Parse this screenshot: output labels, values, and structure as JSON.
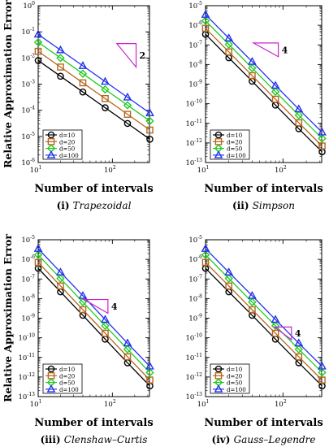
{
  "chart_data": [
    {
      "type": "line",
      "log_x": true,
      "log_y": true,
      "xlim": [
        1,
        2.5
      ],
      "ylim": [
        -6,
        0
      ],
      "xlabel": "Number of intervals",
      "ylabel": "Relative Approximation Error",
      "x_ticks": [
        {
          "exp": 1,
          "label": "10",
          "sup": "1"
        },
        {
          "exp": 2,
          "label": "10",
          "sup": "2"
        }
      ],
      "y_ticks": [
        {
          "exp": 0,
          "label": "10",
          "sup": "0"
        },
        {
          "exp": -1,
          "label": "10",
          "sup": "-1"
        },
        {
          "exp": -2,
          "label": "10",
          "sup": "-2"
        },
        {
          "exp": -3,
          "label": "10",
          "sup": "-3"
        },
        {
          "exp": -4,
          "label": "10",
          "sup": "-4"
        },
        {
          "exp": -5,
          "label": "10",
          "sup": "-5"
        },
        {
          "exp": -6,
          "label": "10",
          "sup": "-6"
        }
      ],
      "x": [
        10,
        20,
        40,
        80,
        160,
        320
      ],
      "series": [
        {
          "name": "d=10",
          "color": "#000000",
          "marker": "circle",
          "values": [
            0.008,
            0.002,
            0.0005,
            0.000125,
            3.13e-05,
            7.8e-06
          ]
        },
        {
          "name": "d=20",
          "color": "#b5651d",
          "marker": "square",
          "values": [
            0.018,
            0.0045,
            0.00112,
            0.00028,
            7e-05,
            1.75e-05
          ]
        },
        {
          "name": "d=50",
          "color": "#22cc22",
          "marker": "diamond",
          "values": [
            0.04,
            0.01,
            0.0025,
            0.000625,
            0.000156,
            3.9e-05
          ]
        },
        {
          "name": "d=100",
          "color": "#2233ee",
          "marker": "triangle",
          "values": [
            0.08,
            0.02,
            0.005,
            0.00125,
            0.000313,
            7.8e-05
          ]
        }
      ],
      "slope_label": "2",
      "caption_num": "(i)",
      "caption_name": "Trapezoidal"
    },
    {
      "type": "line",
      "log_x": true,
      "log_y": true,
      "xlim": [
        1,
        2.5
      ],
      "ylim": [
        -13,
        -5
      ],
      "xlabel": "Number of intervals",
      "ylabel": "",
      "x_ticks": [
        {
          "exp": 1,
          "label": "10",
          "sup": "1"
        },
        {
          "exp": 2,
          "label": "10",
          "sup": "2"
        }
      ],
      "y_ticks": [
        {
          "exp": -5,
          "label": "10",
          "sup": "-5"
        },
        {
          "exp": -6,
          "label": "10",
          "sup": "-6"
        },
        {
          "exp": -7,
          "label": "10",
          "sup": "-7"
        },
        {
          "exp": -8,
          "label": "10",
          "sup": "-8"
        },
        {
          "exp": -9,
          "label": "10",
          "sup": "-9"
        },
        {
          "exp": -10,
          "label": "10",
          "sup": "-10"
        },
        {
          "exp": -11,
          "label": "10",
          "sup": "-11"
        },
        {
          "exp": -12,
          "label": "10",
          "sup": "-12"
        },
        {
          "exp": -13,
          "label": "10",
          "sup": "-13"
        }
      ],
      "x": [
        10,
        20,
        40,
        80,
        160,
        320
      ],
      "series": [
        {
          "name": "d=10",
          "color": "#000000",
          "marker": "circle",
          "values": [
            3.5e-07,
            2.2e-08,
            1.4e-09,
            8.5e-11,
            5.3e-12,
            3.5e-13
          ]
        },
        {
          "name": "d=20",
          "color": "#b5651d",
          "marker": "square",
          "values": [
            7e-07,
            4.4e-08,
            2.7e-09,
            1.7e-10,
            1.07e-11,
            7e-13
          ]
        },
        {
          "name": "d=50",
          "color": "#22cc22",
          "marker": "diamond",
          "values": [
            1.7e-06,
            1.06e-07,
            6.6e-09,
            4.1e-10,
            2.6e-11,
            1.7e-12
          ]
        },
        {
          "name": "d=100",
          "color": "#2233ee",
          "marker": "triangle",
          "values": [
            3.5e-06,
            2.2e-07,
            1.4e-08,
            8.5e-10,
            5.3e-11,
            3.5e-12
          ]
        }
      ],
      "slope_label": "4",
      "caption_num": "(ii)",
      "caption_name": "Simpson"
    },
    {
      "type": "line",
      "log_x": true,
      "log_y": true,
      "xlim": [
        1,
        2.5
      ],
      "ylim": [
        -13,
        -5
      ],
      "xlabel": "Number of intervals",
      "ylabel": "Relative Approximation Error",
      "x_ticks": [
        {
          "exp": 1,
          "label": "10",
          "sup": "1"
        },
        {
          "exp": 2,
          "label": "10",
          "sup": "2"
        }
      ],
      "y_ticks": [
        {
          "exp": -5,
          "label": "10",
          "sup": "-5"
        },
        {
          "exp": -6,
          "label": "10",
          "sup": "-6"
        },
        {
          "exp": -7,
          "label": "10",
          "sup": "-7"
        },
        {
          "exp": -8,
          "label": "10",
          "sup": "-8"
        },
        {
          "exp": -9,
          "label": "10",
          "sup": "-9"
        },
        {
          "exp": -10,
          "label": "10",
          "sup": "-10"
        },
        {
          "exp": -11,
          "label": "10",
          "sup": "-11"
        },
        {
          "exp": -12,
          "label": "10",
          "sup": "-12"
        },
        {
          "exp": -13,
          "label": "10",
          "sup": "-13"
        }
      ],
      "x": [
        10,
        20,
        40,
        80,
        160,
        320
      ],
      "series": [
        {
          "name": "d=10",
          "color": "#000000",
          "marker": "circle",
          "values": [
            3.5e-07,
            2.2e-08,
            1.4e-09,
            8.5e-11,
            5.3e-12,
            3.5e-13
          ]
        },
        {
          "name": "d=20",
          "color": "#b5651d",
          "marker": "square",
          "values": [
            7e-07,
            4.4e-08,
            2.7e-09,
            1.7e-10,
            1.07e-11,
            7e-13
          ]
        },
        {
          "name": "d=50",
          "color": "#22cc22",
          "marker": "diamond",
          "values": [
            1.7e-06,
            1.06e-07,
            6.6e-09,
            4.1e-10,
            2.6e-11,
            1.7e-12
          ]
        },
        {
          "name": "d=100",
          "color": "#2233ee",
          "marker": "triangle",
          "values": [
            3.5e-06,
            2.2e-07,
            1.4e-08,
            8.5e-10,
            5.3e-11,
            3.5e-12
          ]
        }
      ],
      "slope_label": "4",
      "caption_num": "(iii)",
      "caption_name": "Clenshaw–Curtis"
    },
    {
      "type": "line",
      "log_x": true,
      "log_y": true,
      "xlim": [
        1,
        2.5
      ],
      "ylim": [
        -13,
        -5
      ],
      "xlabel": "Number of intervals",
      "ylabel": "",
      "x_ticks": [
        {
          "exp": 1,
          "label": "10",
          "sup": "1"
        },
        {
          "exp": 2,
          "label": "10",
          "sup": "2"
        }
      ],
      "y_ticks": [
        {
          "exp": -5,
          "label": "10",
          "sup": "-5"
        },
        {
          "exp": -6,
          "label": "10",
          "sup": "-6"
        },
        {
          "exp": -7,
          "label": "10",
          "sup": "-7"
        },
        {
          "exp": -8,
          "label": "10",
          "sup": "-8"
        },
        {
          "exp": -9,
          "label": "10",
          "sup": "-9"
        },
        {
          "exp": -10,
          "label": "10",
          "sup": "-10"
        },
        {
          "exp": -11,
          "label": "10",
          "sup": "-11"
        },
        {
          "exp": -12,
          "label": "10",
          "sup": "-12"
        },
        {
          "exp": -13,
          "label": "10",
          "sup": "-13"
        }
      ],
      "x": [
        10,
        20,
        40,
        80,
        160,
        320
      ],
      "series": [
        {
          "name": "d=10",
          "color": "#000000",
          "marker": "circle",
          "values": [
            3.5e-07,
            2.2e-08,
            1.4e-09,
            8.5e-11,
            5.3e-12,
            3.5e-13
          ]
        },
        {
          "name": "d=20",
          "color": "#b5651d",
          "marker": "square",
          "values": [
            7e-07,
            4.4e-08,
            2.7e-09,
            1.7e-10,
            1.07e-11,
            7e-13
          ]
        },
        {
          "name": "d=50",
          "color": "#22cc22",
          "marker": "diamond",
          "values": [
            1.7e-06,
            1.06e-07,
            6.6e-09,
            4.1e-10,
            2.6e-11,
            1.7e-12
          ]
        },
        {
          "name": "d=100",
          "color": "#2233ee",
          "marker": "triangle",
          "values": [
            3.5e-06,
            2.2e-07,
            1.4e-08,
            8.5e-10,
            5.3e-11,
            3.5e-12
          ]
        }
      ],
      "slope_label": "4",
      "caption_num": "(iv)",
      "caption_name": "Gauss–Legendre"
    }
  ]
}
